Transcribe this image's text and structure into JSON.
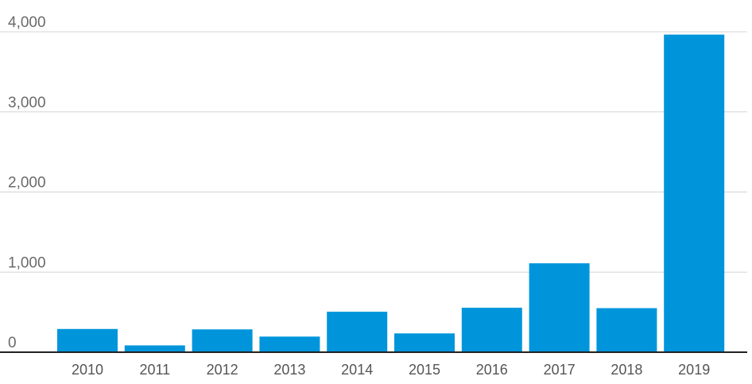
{
  "chart_data": {
    "type": "bar",
    "categories": [
      "2010",
      "2011",
      "2012",
      "2013",
      "2014",
      "2015",
      "2016",
      "2017",
      "2018",
      "2019"
    ],
    "values": [
      290,
      85,
      285,
      195,
      505,
      235,
      555,
      1110,
      550,
      3965
    ],
    "ylim": [
      0,
      4000
    ],
    "yticks": [
      0,
      1000,
      2000,
      3000,
      4000
    ],
    "ytick_labels": [
      "0",
      "1,000",
      "2,000",
      "3,000",
      "4,000"
    ],
    "grid": true,
    "colors": {
      "bar": "#0095db",
      "grid": "#d4d4d4",
      "baseline": "#222222",
      "tick_text": "#6a6a6a"
    }
  }
}
